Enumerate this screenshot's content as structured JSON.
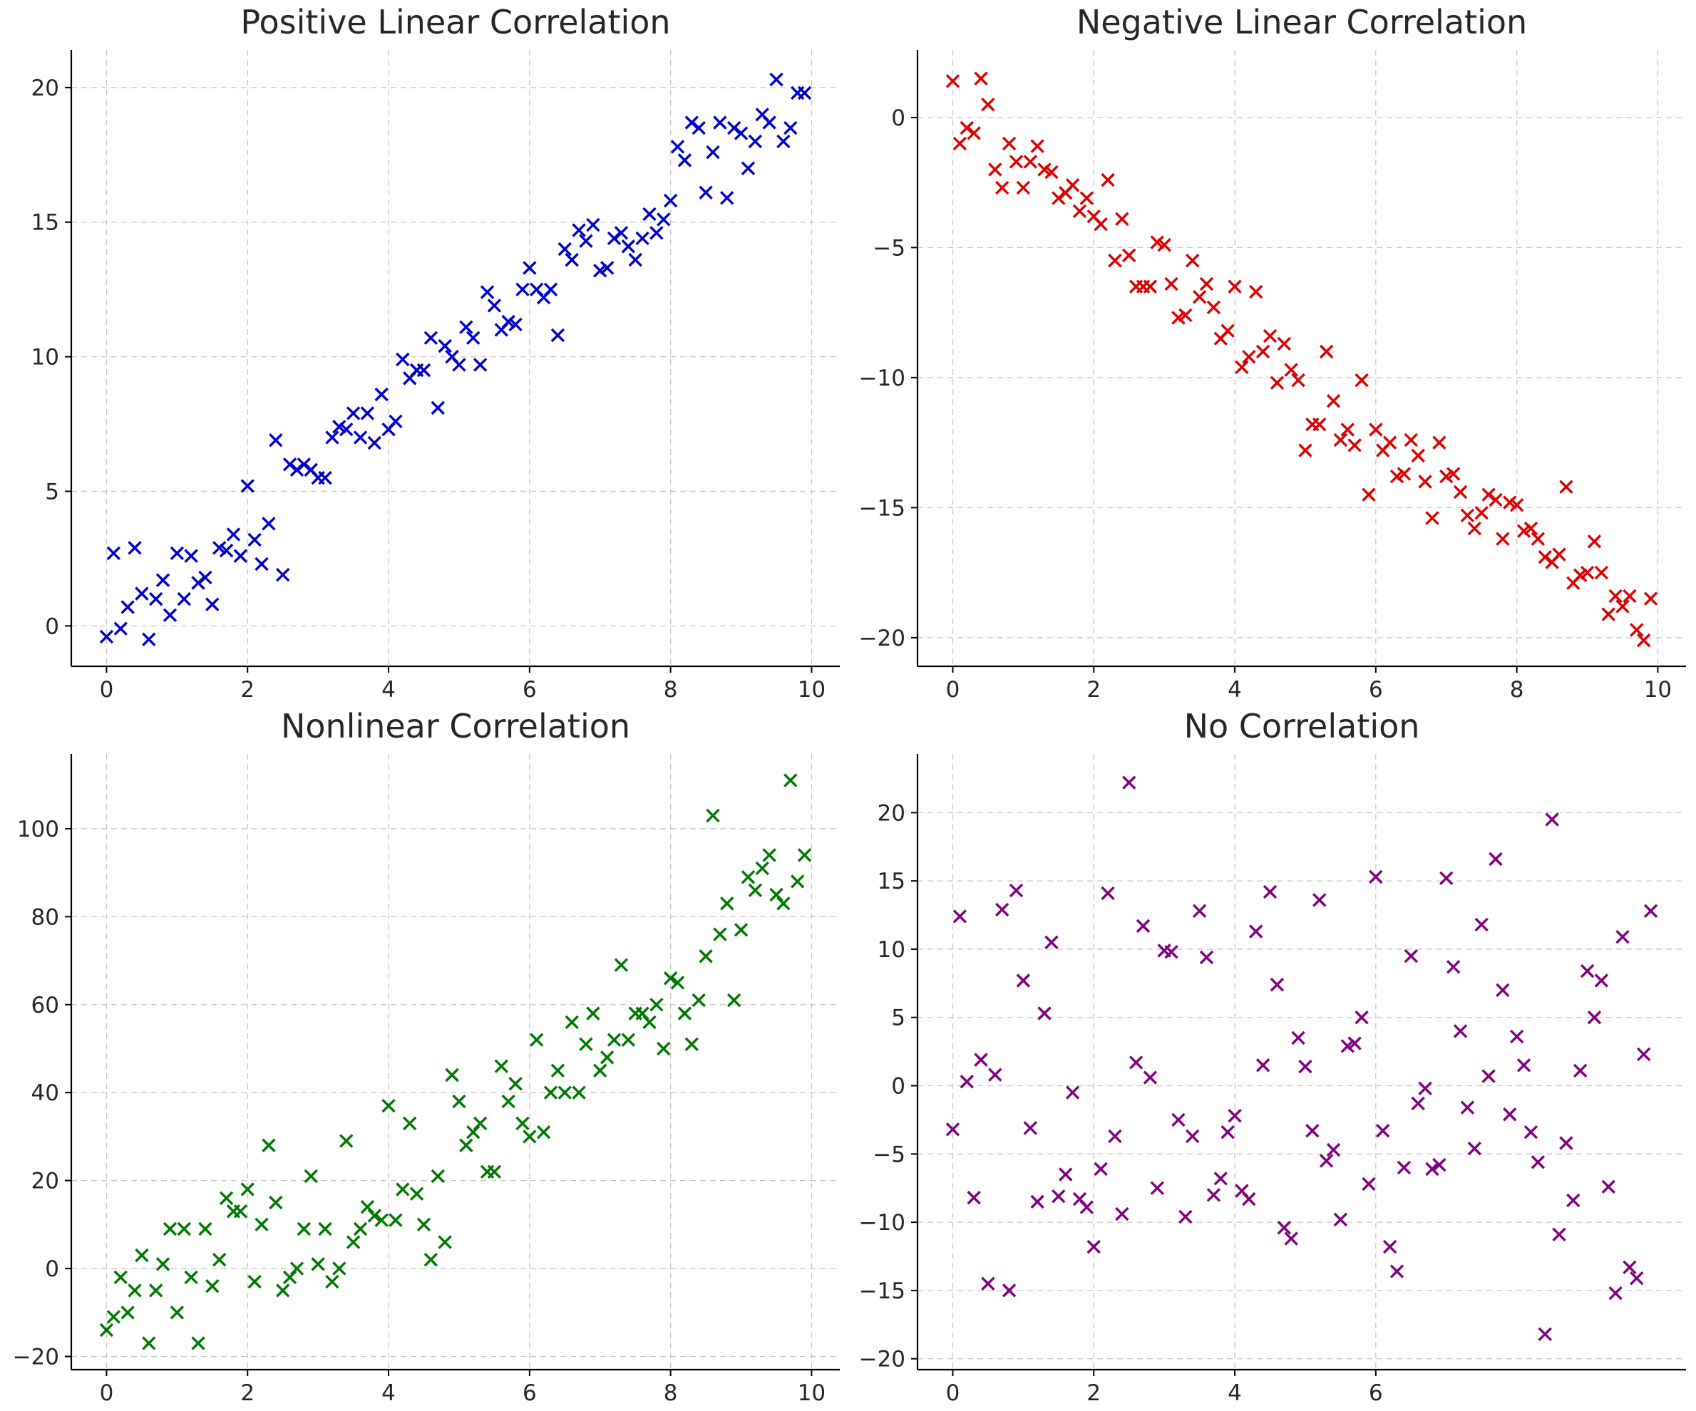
{
  "chart_data": [
    {
      "type": "scatter",
      "title": "Positive Linear Correlation",
      "xlabel": "",
      "ylabel": "",
      "xlim": [
        -0.5,
        10.4
      ],
      "ylim": [
        -1.5,
        21.4
      ],
      "xticks": [
        0,
        2,
        4,
        6,
        8,
        10
      ],
      "yticks": [
        0,
        5,
        10,
        15,
        20
      ],
      "marker": "x",
      "color": "#0000cc",
      "grid": true,
      "x": [
        0.0,
        0.1,
        0.2,
        0.3,
        0.4,
        0.5,
        0.6,
        0.7,
        0.8,
        0.9,
        1.0,
        1.1,
        1.2,
        1.3,
        1.4,
        1.5,
        1.6,
        1.7,
        1.8,
        1.9,
        2.0,
        2.1,
        2.2,
        2.3,
        2.4,
        2.5,
        2.6,
        2.7,
        2.8,
        2.9,
        3.0,
        3.1,
        3.2,
        3.3,
        3.4,
        3.5,
        3.6,
        3.7,
        3.8,
        3.9,
        4.0,
        4.1,
        4.2,
        4.3,
        4.4,
        4.5,
        4.6,
        4.7,
        4.8,
        4.9,
        5.0,
        5.1,
        5.2,
        5.3,
        5.4,
        5.5,
        5.6,
        5.7,
        5.8,
        5.9,
        6.0,
        6.1,
        6.2,
        6.3,
        6.4,
        6.5,
        6.6,
        6.7,
        6.8,
        6.9,
        7.0,
        7.1,
        7.2,
        7.3,
        7.4,
        7.5,
        7.6,
        7.7,
        7.8,
        7.9,
        8.0,
        8.1,
        8.2,
        8.3,
        8.4,
        8.5,
        8.6,
        8.7,
        8.8,
        8.9,
        9.0,
        9.1,
        9.2,
        9.3,
        9.4,
        9.5,
        9.6,
        9.7,
        9.8,
        9.9
      ],
      "y": [
        -0.4,
        2.7,
        -0.1,
        0.7,
        2.9,
        1.2,
        -0.5,
        1.0,
        1.7,
        0.4,
        2.7,
        1.0,
        2.6,
        1.6,
        1.8,
        0.8,
        2.9,
        2.8,
        3.4,
        2.6,
        5.2,
        3.2,
        2.3,
        3.8,
        6.9,
        1.9,
        6.0,
        5.8,
        6.0,
        5.8,
        5.5,
        5.5,
        7.0,
        7.4,
        7.3,
        7.9,
        7.0,
        7.9,
        6.8,
        8.6,
        7.3,
        7.6,
        9.9,
        9.2,
        9.5,
        9.5,
        10.7,
        8.1,
        10.4,
        10.0,
        9.7,
        11.1,
        10.7,
        9.7,
        12.4,
        11.9,
        11.0,
        11.3,
        11.2,
        12.5,
        13.3,
        12.5,
        12.2,
        12.5,
        10.8,
        14.0,
        13.6,
        14.7,
        14.3,
        14.9,
        13.2,
        13.3,
        14.4,
        14.6,
        14.1,
        13.6,
        14.4,
        15.3,
        14.6,
        15.1,
        15.8,
        17.8,
        17.3,
        18.7,
        18.5,
        16.1,
        17.6,
        18.7,
        15.9,
        18.5,
        18.3,
        17.0,
        18.0,
        19.0,
        18.7,
        20.3,
        18.0,
        18.5,
        19.8,
        19.8
      ]
    },
    {
      "type": "scatter",
      "title": "Negative Linear Correlation",
      "xlabel": "",
      "ylabel": "",
      "xlim": [
        -0.5,
        10.4
      ],
      "ylim": [
        -21.1,
        2.6
      ],
      "xticks": [
        0,
        2,
        4,
        6,
        8,
        10
      ],
      "yticks": [
        0,
        -5,
        -10,
        -15,
        -20
      ],
      "marker": "x",
      "color": "#dd0000",
      "grid": true,
      "x": [
        0.0,
        0.1,
        0.2,
        0.3,
        0.4,
        0.5,
        0.6,
        0.7,
        0.8,
        0.9,
        1.0,
        1.1,
        1.2,
        1.3,
        1.4,
        1.5,
        1.6,
        1.7,
        1.8,
        1.9,
        2.0,
        2.1,
        2.2,
        2.3,
        2.4,
        2.5,
        2.6,
        2.7,
        2.8,
        2.9,
        3.0,
        3.1,
        3.2,
        3.3,
        3.4,
        3.5,
        3.6,
        3.7,
        3.8,
        3.9,
        4.0,
        4.1,
        4.2,
        4.3,
        4.4,
        4.5,
        4.6,
        4.7,
        4.8,
        4.9,
        5.0,
        5.1,
        5.2,
        5.3,
        5.4,
        5.5,
        5.6,
        5.7,
        5.8,
        5.9,
        6.0,
        6.1,
        6.2,
        6.3,
        6.4,
        6.5,
        6.6,
        6.7,
        6.8,
        6.9,
        7.0,
        7.1,
        7.2,
        7.3,
        7.4,
        7.5,
        7.6,
        7.7,
        7.8,
        7.9,
        8.0,
        8.1,
        8.2,
        8.3,
        8.4,
        8.5,
        8.6,
        8.7,
        8.8,
        8.9,
        9.0,
        9.1,
        9.2,
        9.3,
        9.4,
        9.5,
        9.6,
        9.7,
        9.8,
        9.9
      ],
      "y": [
        1.4,
        -1.0,
        -0.4,
        -0.6,
        1.5,
        0.5,
        -2.0,
        -2.7,
        -1.0,
        -1.7,
        -2.7,
        -1.7,
        -1.1,
        -2.0,
        -2.1,
        -3.1,
        -2.9,
        -2.6,
        -3.6,
        -3.1,
        -3.8,
        -4.1,
        -2.4,
        -5.5,
        -3.9,
        -5.3,
        -6.5,
        -6.5,
        -6.5,
        -4.8,
        -4.9,
        -6.4,
        -7.7,
        -7.6,
        -5.5,
        -6.9,
        -6.4,
        -7.3,
        -8.5,
        -8.2,
        -6.5,
        -9.6,
        -9.2,
        -6.7,
        -9.0,
        -8.4,
        -10.2,
        -8.7,
        -9.7,
        -10.1,
        -12.8,
        -11.8,
        -11.8,
        -9.0,
        -10.9,
        -12.4,
        -12.0,
        -12.6,
        -10.1,
        -14.5,
        -12.0,
        -12.8,
        -12.5,
        -13.8,
        -13.7,
        -12.4,
        -13.0,
        -14.0,
        -15.4,
        -12.5,
        -13.8,
        -13.7,
        -14.4,
        -15.3,
        -15.8,
        -15.2,
        -14.5,
        -14.7,
        -16.2,
        -14.8,
        -14.9,
        -15.9,
        -15.8,
        -16.2,
        -16.9,
        -17.1,
        -16.8,
        -14.2,
        -17.9,
        -17.6,
        -17.5,
        -16.3,
        -17.5,
        -19.1,
        -18.4,
        -18.8,
        -18.4,
        -19.7,
        -20.1,
        -18.5
      ]
    },
    {
      "type": "scatter",
      "title": "Nonlinear Correlation",
      "xlabel": "",
      "ylabel": "",
      "xlim": [
        -0.5,
        10.4
      ],
      "ylim": [
        -23.0,
        117.0
      ],
      "xticks": [
        0,
        2,
        4,
        6,
        8,
        10
      ],
      "yticks": [
        -20,
        0,
        20,
        40,
        60,
        80,
        100
      ],
      "marker": "x",
      "color": "#007700",
      "grid": true,
      "x": [
        0.0,
        0.1,
        0.2,
        0.3,
        0.4,
        0.5,
        0.6,
        0.7,
        0.8,
        0.9,
        1.0,
        1.1,
        1.2,
        1.3,
        1.4,
        1.5,
        1.6,
        1.7,
        1.8,
        1.9,
        2.0,
        2.1,
        2.2,
        2.3,
        2.4,
        2.5,
        2.6,
        2.7,
        2.8,
        2.9,
        3.0,
        3.1,
        3.2,
        3.3,
        3.4,
        3.5,
        3.6,
        3.7,
        3.8,
        3.9,
        4.0,
        4.1,
        4.2,
        4.3,
        4.4,
        4.5,
        4.6,
        4.7,
        4.8,
        4.9,
        5.0,
        5.1,
        5.2,
        5.3,
        5.4,
        5.5,
        5.6,
        5.7,
        5.8,
        5.9,
        6.0,
        6.1,
        6.2,
        6.3,
        6.4,
        6.5,
        6.6,
        6.7,
        6.8,
        6.9,
        7.0,
        7.1,
        7.2,
        7.3,
        7.4,
        7.5,
        7.6,
        7.7,
        7.8,
        7.9,
        8.0,
        8.1,
        8.2,
        8.3,
        8.4,
        8.5,
        8.6,
        8.7,
        8.8,
        8.9,
        9.0,
        9.1,
        9.2,
        9.3,
        9.4,
        9.5,
        9.6,
        9.7,
        9.8,
        9.9
      ],
      "y": [
        -14,
        -11,
        -2,
        -10,
        -5,
        3,
        -17,
        -5,
        1,
        9,
        -10,
        9,
        -2,
        -17,
        9,
        -4,
        2,
        16,
        13,
        13,
        18,
        -3,
        10,
        28,
        15,
        -5,
        -2,
        0,
        9,
        21,
        1,
        9,
        -3,
        0,
        29,
        6,
        9,
        14,
        12,
        11,
        37,
        11,
        18,
        33,
        17,
        10,
        2,
        21,
        6,
        44,
        38,
        28,
        31,
        33,
        22,
        22,
        46,
        38,
        42,
        33,
        30,
        52,
        31,
        40,
        45,
        40,
        56,
        40,
        51,
        58,
        45,
        48,
        52,
        69,
        52,
        58,
        58,
        56,
        60,
        50,
        66,
        65,
        58,
        51,
        61,
        71,
        103,
        76,
        83,
        61,
        77,
        89,
        86,
        91,
        94,
        85,
        83,
        111,
        88,
        94
      ]
    },
    {
      "type": "scatter",
      "title": "No Correlation",
      "xlabel": "",
      "ylabel": "",
      "xlim": [
        -0.5,
        10.4
      ],
      "ylim": [
        -20.8,
        24.3
      ],
      "xticks": [
        0,
        2,
        4,
        6
      ],
      "yticks": [
        -20,
        -15,
        -10,
        -5,
        0,
        5,
        10,
        15,
        20
      ],
      "marker": "x",
      "color": "#800080",
      "grid": true,
      "x": [
        0.0,
        0.1,
        0.2,
        0.3,
        0.4,
        0.5,
        0.6,
        0.7,
        0.8,
        0.9,
        1.0,
        1.1,
        1.2,
        1.3,
        1.4,
        1.5,
        1.6,
        1.7,
        1.8,
        1.9,
        2.0,
        2.1,
        2.2,
        2.3,
        2.4,
        2.5,
        2.6,
        2.7,
        2.8,
        2.9,
        3.0,
        3.1,
        3.2,
        3.3,
        3.4,
        3.5,
        3.6,
        3.7,
        3.8,
        3.9,
        4.0,
        4.1,
        4.2,
        4.3,
        4.4,
        4.5,
        4.6,
        4.7,
        4.8,
        4.9,
        5.0,
        5.1,
        5.2,
        5.3,
        5.4,
        5.5,
        5.6,
        5.7,
        5.8,
        5.9,
        6.0,
        6.1,
        6.2,
        6.3,
        6.4,
        6.5,
        6.6,
        6.7,
        6.8,
        6.9,
        7.0,
        7.1,
        7.2,
        7.3,
        7.4,
        7.5,
        7.6,
        7.7,
        7.8,
        7.9,
        8.0,
        8.1,
        8.2,
        8.3,
        8.4,
        8.5,
        8.6,
        8.7,
        8.8,
        8.9,
        9.0,
        9.1,
        9.2,
        9.3,
        9.4,
        9.5,
        9.6,
        9.7,
        9.8,
        9.9
      ],
      "y": [
        -3.2,
        12.4,
        0.3,
        -8.2,
        1.9,
        -14.5,
        0.8,
        12.9,
        -15.0,
        14.3,
        7.7,
        -3.1,
        -8.5,
        5.3,
        10.5,
        -8.1,
        -6.5,
        -0.5,
        -8.3,
        -8.9,
        -11.8,
        -6.1,
        14.1,
        -3.7,
        -9.4,
        22.2,
        1.7,
        11.7,
        0.6,
        -7.5,
        9.9,
        9.8,
        -2.5,
        -9.6,
        -3.7,
        12.8,
        9.4,
        -8.0,
        -6.8,
        -3.4,
        -2.2,
        -7.7,
        -8.3,
        11.3,
        1.5,
        14.2,
        7.4,
        -10.4,
        -11.2,
        3.5,
        1.4,
        -3.3,
        13.6,
        -5.5,
        -4.7,
        -9.8,
        2.9,
        3.1,
        5.0,
        -7.2,
        15.3,
        -3.3,
        -11.8,
        -13.6,
        -6.0,
        9.5,
        -1.3,
        -0.2,
        -6.1,
        -5.8,
        15.2,
        8.7,
        4.0,
        -1.6,
        -4.6,
        11.8,
        0.7,
        16.6,
        7.0,
        -2.1,
        3.6,
        1.5,
        -3.4,
        -5.6,
        -18.2,
        19.5,
        -10.9,
        -4.2,
        -8.4,
        1.1,
        8.4,
        5.0,
        7.7,
        -7.4,
        -15.2,
        10.9,
        -13.3,
        -14.1,
        2.3,
        12.8
      ]
    }
  ]
}
